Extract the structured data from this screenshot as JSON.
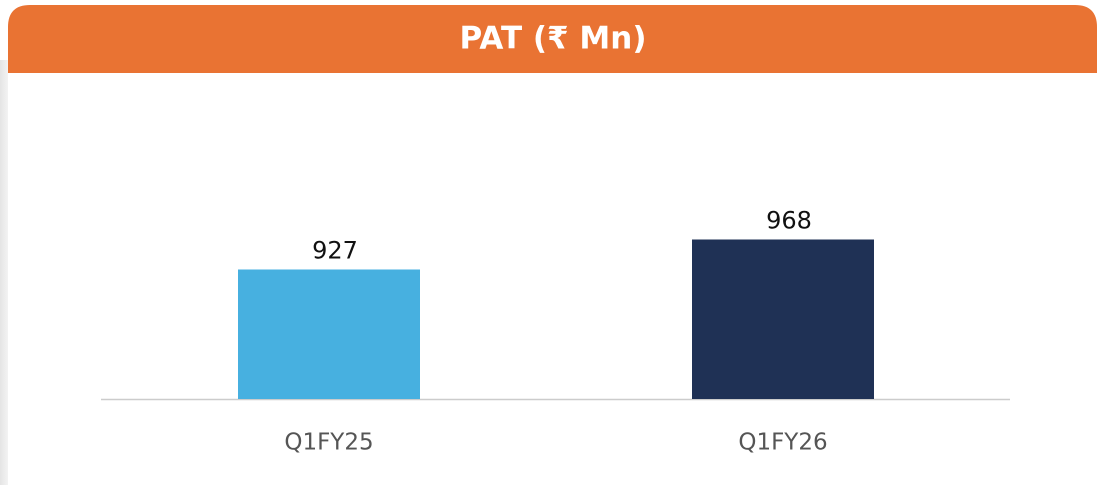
{
  "chart_data": {
    "type": "bar",
    "title": "PAT (₹ Mn)",
    "categories": [
      "Q1FY25",
      "Q1FY26"
    ],
    "values": [
      927,
      968
    ],
    "colors": [
      "#47b0e0",
      "#1f3155"
    ],
    "ylim": [
      750,
      1050
    ]
  }
}
